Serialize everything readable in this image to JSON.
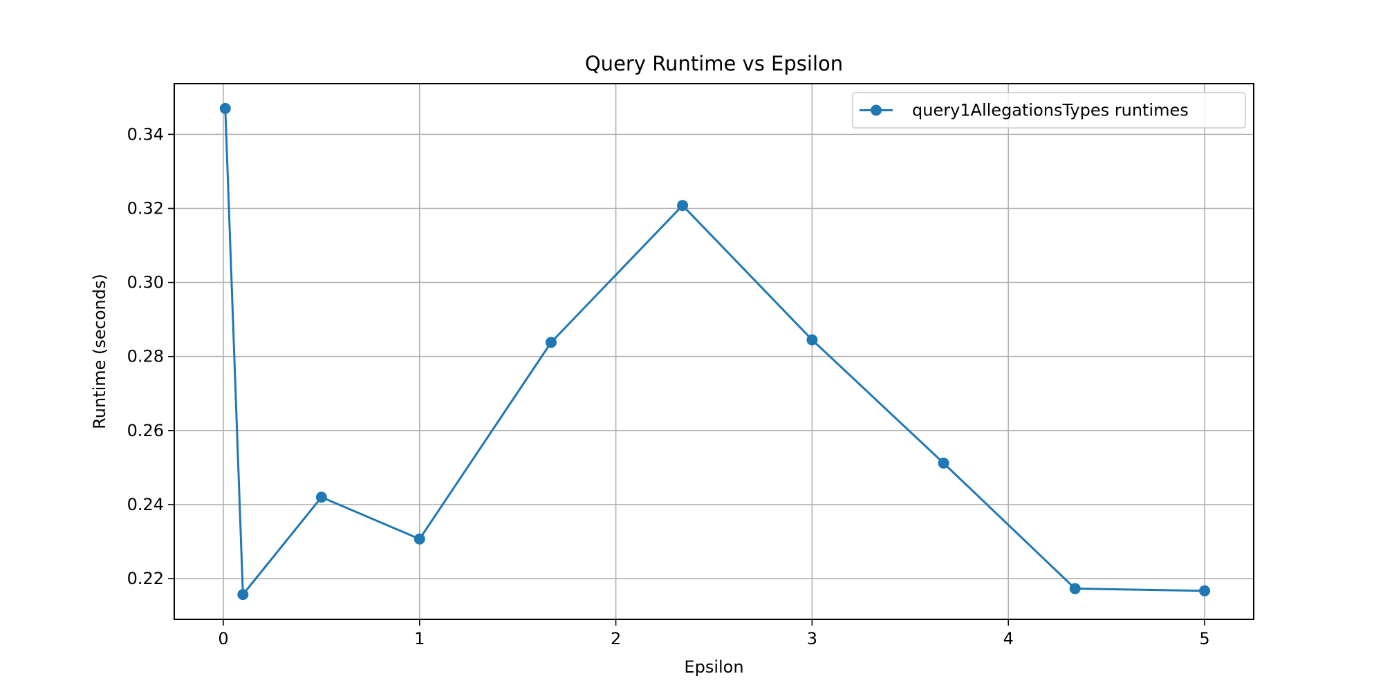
{
  "chart_data": {
    "type": "line",
    "title": "Query Runtime vs Epsilon",
    "xlabel": "Epsilon",
    "ylabel": "Runtime (seconds)",
    "xlim": [
      -0.25,
      5.25
    ],
    "ylim": [
      0.209,
      0.3537
    ],
    "x_ticks": [
      0,
      1,
      2,
      3,
      4,
      5
    ],
    "x_tick_labels": [
      "0",
      "1",
      "2",
      "3",
      "4",
      "5"
    ],
    "y_ticks": [
      0.22,
      0.24,
      0.26,
      0.28,
      0.3,
      0.32,
      0.34
    ],
    "y_tick_labels": [
      "0.22",
      "0.24",
      "0.26",
      "0.28",
      "0.30",
      "0.32",
      "0.34"
    ],
    "grid": true,
    "legend_position": "top-right",
    "series": [
      {
        "name": "query1AllegationsTypes runtimes",
        "color": "#1f77b4",
        "marker": "circle",
        "x": [
          0.01,
          0.1,
          0.5,
          1.0,
          1.67,
          2.34,
          3.0,
          3.67,
          4.34,
          5.0
        ],
        "y": [
          0.347,
          0.2157,
          0.242,
          0.2307,
          0.2838,
          0.3208,
          0.2845,
          0.2512,
          0.2173,
          0.2167
        ]
      }
    ]
  }
}
